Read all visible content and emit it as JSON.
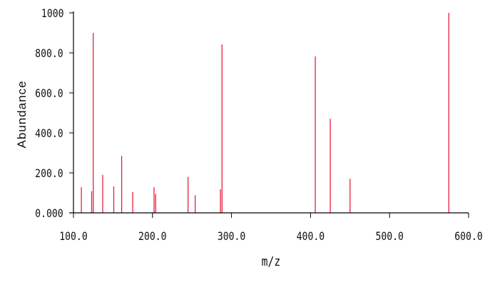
{
  "chart_data": {
    "type": "bar",
    "xlabel": "m/z",
    "ylabel": "Abundance",
    "xlim": [
      100,
      600
    ],
    "ylim": [
      0,
      1000
    ],
    "xticks": [
      "100.0",
      "200.0",
      "300.0",
      "400.0",
      "500.0",
      "600.0"
    ],
    "yticks": [
      "0.000",
      "200.0",
      "400.0",
      "600.0",
      "800.0",
      "1000"
    ],
    "x": [
      110,
      123,
      125,
      137,
      151,
      161,
      175,
      202,
      204,
      245,
      254,
      286,
      288,
      406,
      425,
      450,
      575
    ],
    "values": [
      128,
      108,
      900,
      190,
      132,
      285,
      104,
      128,
      95,
      180,
      88,
      118,
      842,
      782,
      470,
      170,
      1000
    ],
    "grid": false,
    "colors": {
      "peak": "#e8203a",
      "axis": "#000000"
    }
  }
}
